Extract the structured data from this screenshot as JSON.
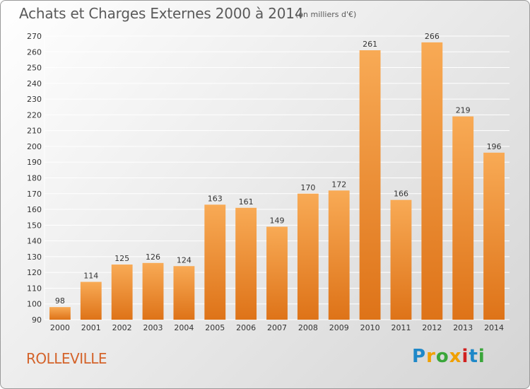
{
  "header": {
    "title": "Achats et Charges Externes 2000 à 2014",
    "unit": "(en milliers d'€)"
  },
  "footer": {
    "commune": "ROLLEVILLE",
    "logo_text": "Proxiti",
    "logo_colors": [
      "#1e88c8",
      "#f0a000",
      "#3aa63a",
      "#f0a000",
      "#d02020",
      "#1e88c8",
      "#3aa63a"
    ]
  },
  "colors": {
    "bar_light": "#f8aa55",
    "bar_dark": "#de7318",
    "grid": "#ffffff"
  },
  "chart_data": {
    "type": "bar",
    "title": "Achats et Charges Externes 2000 à 2014",
    "subtitle": "(en milliers d'€)",
    "categories": [
      "2000",
      "2001",
      "2002",
      "2003",
      "2004",
      "2005",
      "2006",
      "2007",
      "2008",
      "2009",
      "2010",
      "2011",
      "2012",
      "2013",
      "2014"
    ],
    "values": [
      98,
      114,
      125,
      126,
      124,
      163,
      161,
      149,
      170,
      172,
      261,
      166,
      266,
      219,
      196
    ],
    "ylim": [
      90,
      270
    ],
    "yticks": [
      90,
      100,
      110,
      120,
      130,
      140,
      150,
      160,
      170,
      180,
      190,
      200,
      210,
      220,
      230,
      240,
      250,
      260,
      270
    ],
    "grid": true,
    "xlabel": "",
    "ylabel": ""
  }
}
